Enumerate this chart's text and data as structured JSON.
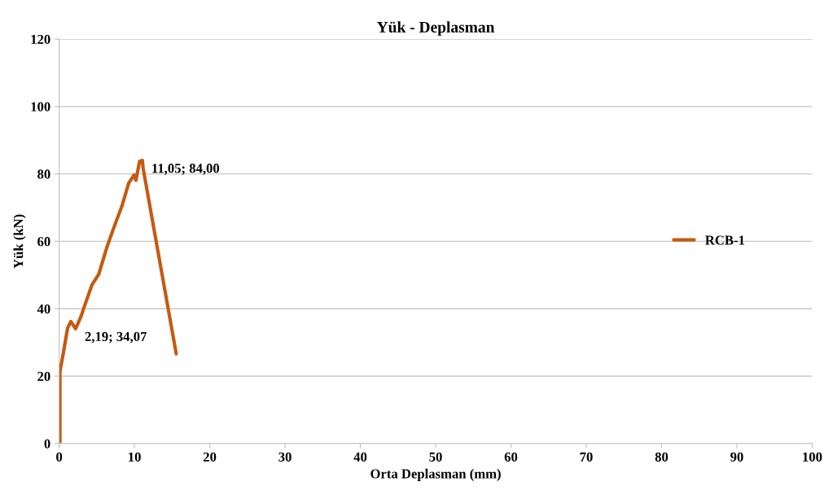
{
  "chart_data": {
    "type": "line",
    "title": "Yük - Deplasman",
    "xlabel": "Orta Deplasman (mm)",
    "ylabel": "Yük (kN)",
    "series": [
      {
        "name": "RCB-1",
        "color": "#c55a11",
        "x": [
          0.1,
          0.1,
          0.57,
          1.12,
          1.55,
          2.19,
          2.92,
          3.28,
          4.36,
          5.27,
          6.35,
          7.25,
          8.33,
          9.24,
          9.96,
          10.2,
          10.68,
          11.05,
          11.15,
          15.55
        ],
        "values": [
          0.4,
          21.3,
          27.0,
          34.2,
          36.2,
          34.07,
          37.8,
          40.2,
          47.1,
          50.3,
          58.3,
          64.0,
          70.4,
          77.3,
          79.7,
          78.1,
          83.7,
          84.0,
          81.7,
          26.6
        ]
      }
    ],
    "annotations": [
      {
        "text": "11,05; 84,00",
        "x": 11.05,
        "y": 84.0
      },
      {
        "text": "2,19; 34,07",
        "x": 2.19,
        "y": 34.07
      }
    ],
    "xlim": [
      0,
      100
    ],
    "xticks": [
      0,
      10,
      20,
      30,
      40,
      50,
      60,
      70,
      80,
      90,
      100
    ],
    "ylim": [
      0,
      120
    ],
    "yticks": [
      0,
      20,
      40,
      60,
      80,
      100,
      120
    ],
    "grid": "y",
    "legend": "right",
    "marker": "none",
    "line_style": "solid"
  }
}
